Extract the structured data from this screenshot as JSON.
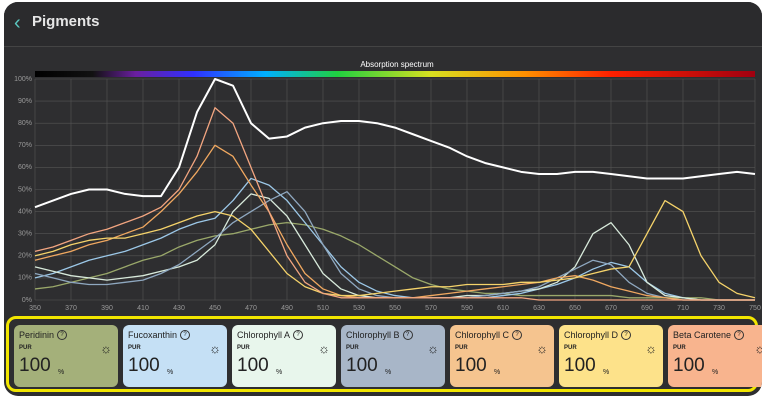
{
  "header": {
    "title": "Pigments"
  },
  "chart_data": {
    "type": "line",
    "title": "Absorption spectrum",
    "x": [
      350,
      360,
      370,
      380,
      390,
      400,
      410,
      420,
      430,
      440,
      450,
      460,
      470,
      480,
      490,
      500,
      510,
      520,
      530,
      540,
      550,
      560,
      570,
      580,
      590,
      600,
      610,
      620,
      630,
      640,
      650,
      660,
      670,
      680,
      690,
      700,
      710,
      720,
      730,
      740,
      750
    ],
    "xlim": [
      350,
      750
    ],
    "xticks": [
      350,
      370,
      390,
      410,
      430,
      450,
      470,
      490,
      510,
      530,
      550,
      570,
      590,
      610,
      630,
      650,
      670,
      690,
      710,
      730,
      750
    ],
    "ylim": [
      0,
      100
    ],
    "yticks": [
      {
        "value": 0,
        "label": "0%"
      },
      {
        "value": 10,
        "label": "10%"
      },
      {
        "value": 20,
        "label": "20%"
      },
      {
        "value": 30,
        "label": "30%"
      },
      {
        "value": 40,
        "label": "40%"
      },
      {
        "value": 50,
        "label": "50%"
      },
      {
        "value": 60,
        "label": "60%"
      },
      {
        "value": 70,
        "label": "70%"
      },
      {
        "value": 80,
        "label": "80%"
      },
      {
        "value": 90,
        "label": "90%"
      },
      {
        "value": 100,
        "label": "100%"
      }
    ],
    "grid": true,
    "series": [
      {
        "color": "#9aa86a",
        "values": [
          5,
          6,
          8,
          10,
          12,
          15,
          18,
          20,
          24,
          27,
          29,
          30,
          32,
          34,
          35,
          34,
          32,
          29,
          25,
          20,
          15,
          10,
          7,
          5,
          4,
          3,
          3,
          2,
          2,
          2,
          2,
          2,
          2,
          1,
          1,
          1,
          1,
          1,
          0,
          0,
          0
        ]
      },
      {
        "color": "#9cc8e8",
        "values": [
          10,
          12,
          15,
          18,
          20,
          22,
          25,
          28,
          32,
          35,
          37,
          45,
          55,
          52,
          45,
          35,
          25,
          15,
          8,
          4,
          2,
          1,
          1,
          1,
          1,
          1,
          2,
          3,
          5,
          7,
          10,
          14,
          17,
          15,
          8,
          3,
          1,
          0,
          0,
          0,
          0
        ]
      },
      {
        "color": "#d8eadb",
        "values": [
          15,
          13,
          11,
          10,
          9,
          10,
          11,
          13,
          15,
          18,
          25,
          40,
          48,
          46,
          38,
          25,
          12,
          5,
          2,
          1,
          1,
          1,
          1,
          1,
          2,
          2,
          3,
          4,
          5,
          8,
          15,
          30,
          35,
          25,
          8,
          2,
          1,
          0,
          0,
          0,
          0
        ]
      },
      {
        "color": "#8fa8c0",
        "values": [
          12,
          10,
          8,
          7,
          7,
          8,
          9,
          12,
          16,
          22,
          28,
          35,
          40,
          45,
          49,
          40,
          25,
          12,
          5,
          2,
          1,
          1,
          1,
          1,
          1,
          2,
          3,
          4,
          6,
          10,
          14,
          18,
          16,
          8,
          3,
          1,
          0,
          0,
          0,
          0,
          0
        ]
      },
      {
        "color": "#f0a860",
        "values": [
          18,
          20,
          22,
          25,
          27,
          30,
          33,
          40,
          48,
          58,
          70,
          65,
          52,
          40,
          25,
          12,
          5,
          2,
          1,
          1,
          1,
          1,
          2,
          3,
          4,
          5,
          6,
          7,
          8,
          10,
          11,
          9,
          6,
          4,
          2,
          1,
          0,
          0,
          0,
          0,
          0
        ]
      },
      {
        "color": "#f5d36a",
        "values": [
          20,
          22,
          25,
          27,
          28,
          28,
          30,
          32,
          35,
          38,
          40,
          38,
          32,
          22,
          12,
          6,
          3,
          2,
          2,
          3,
          4,
          5,
          6,
          6,
          7,
          7,
          7,
          8,
          8,
          9,
          10,
          12,
          14,
          15,
          30,
          45,
          40,
          20,
          8,
          3,
          1
        ]
      },
      {
        "color": "#f2a580",
        "values": [
          22,
          24,
          27,
          30,
          32,
          35,
          38,
          42,
          50,
          65,
          87,
          80,
          60,
          40,
          20,
          8,
          3,
          1,
          1,
          1,
          1,
          1,
          1,
          1,
          1,
          1,
          1,
          1,
          0,
          0,
          0,
          0,
          0,
          0,
          0,
          0,
          0,
          0,
          0,
          0,
          0
        ]
      },
      {
        "color": "#ffffff",
        "values": [
          42,
          45,
          48,
          50,
          50,
          48,
          47,
          47,
          60,
          85,
          100,
          97,
          80,
          73,
          74,
          78,
          80,
          81,
          81,
          80,
          78,
          75,
          72,
          69,
          65,
          62,
          60,
          58,
          57,
          57,
          58,
          58,
          57,
          56,
          55,
          55,
          55,
          56,
          57,
          58,
          57
        ]
      }
    ]
  },
  "cards": [
    {
      "name": "Peridinin",
      "metric": "PUR",
      "value": 100,
      "unit": "%",
      "color": "#a4b07a"
    },
    {
      "name": "Fucoxanthin",
      "metric": "PUR",
      "value": 100,
      "unit": "%",
      "color": "#c5e0f5"
    },
    {
      "name": "Chlorophyll A",
      "metric": "PUR",
      "value": 100,
      "unit": "%",
      "color": "#e8f6ec"
    },
    {
      "name": "Chlorophyll B",
      "metric": "PUR",
      "value": 100,
      "unit": "%",
      "color": "#a8b6c8"
    },
    {
      "name": "Chlorophyll C",
      "metric": "PUR",
      "value": 100,
      "unit": "%",
      "color": "#f5c48f"
    },
    {
      "name": "Chlorophyll D",
      "metric": "PUR",
      "value": 100,
      "unit": "%",
      "color": "#fde28a"
    },
    {
      "name": "Beta Carotene",
      "metric": "PUR",
      "value": 100,
      "unit": "%",
      "color": "#f8b48e"
    }
  ]
}
